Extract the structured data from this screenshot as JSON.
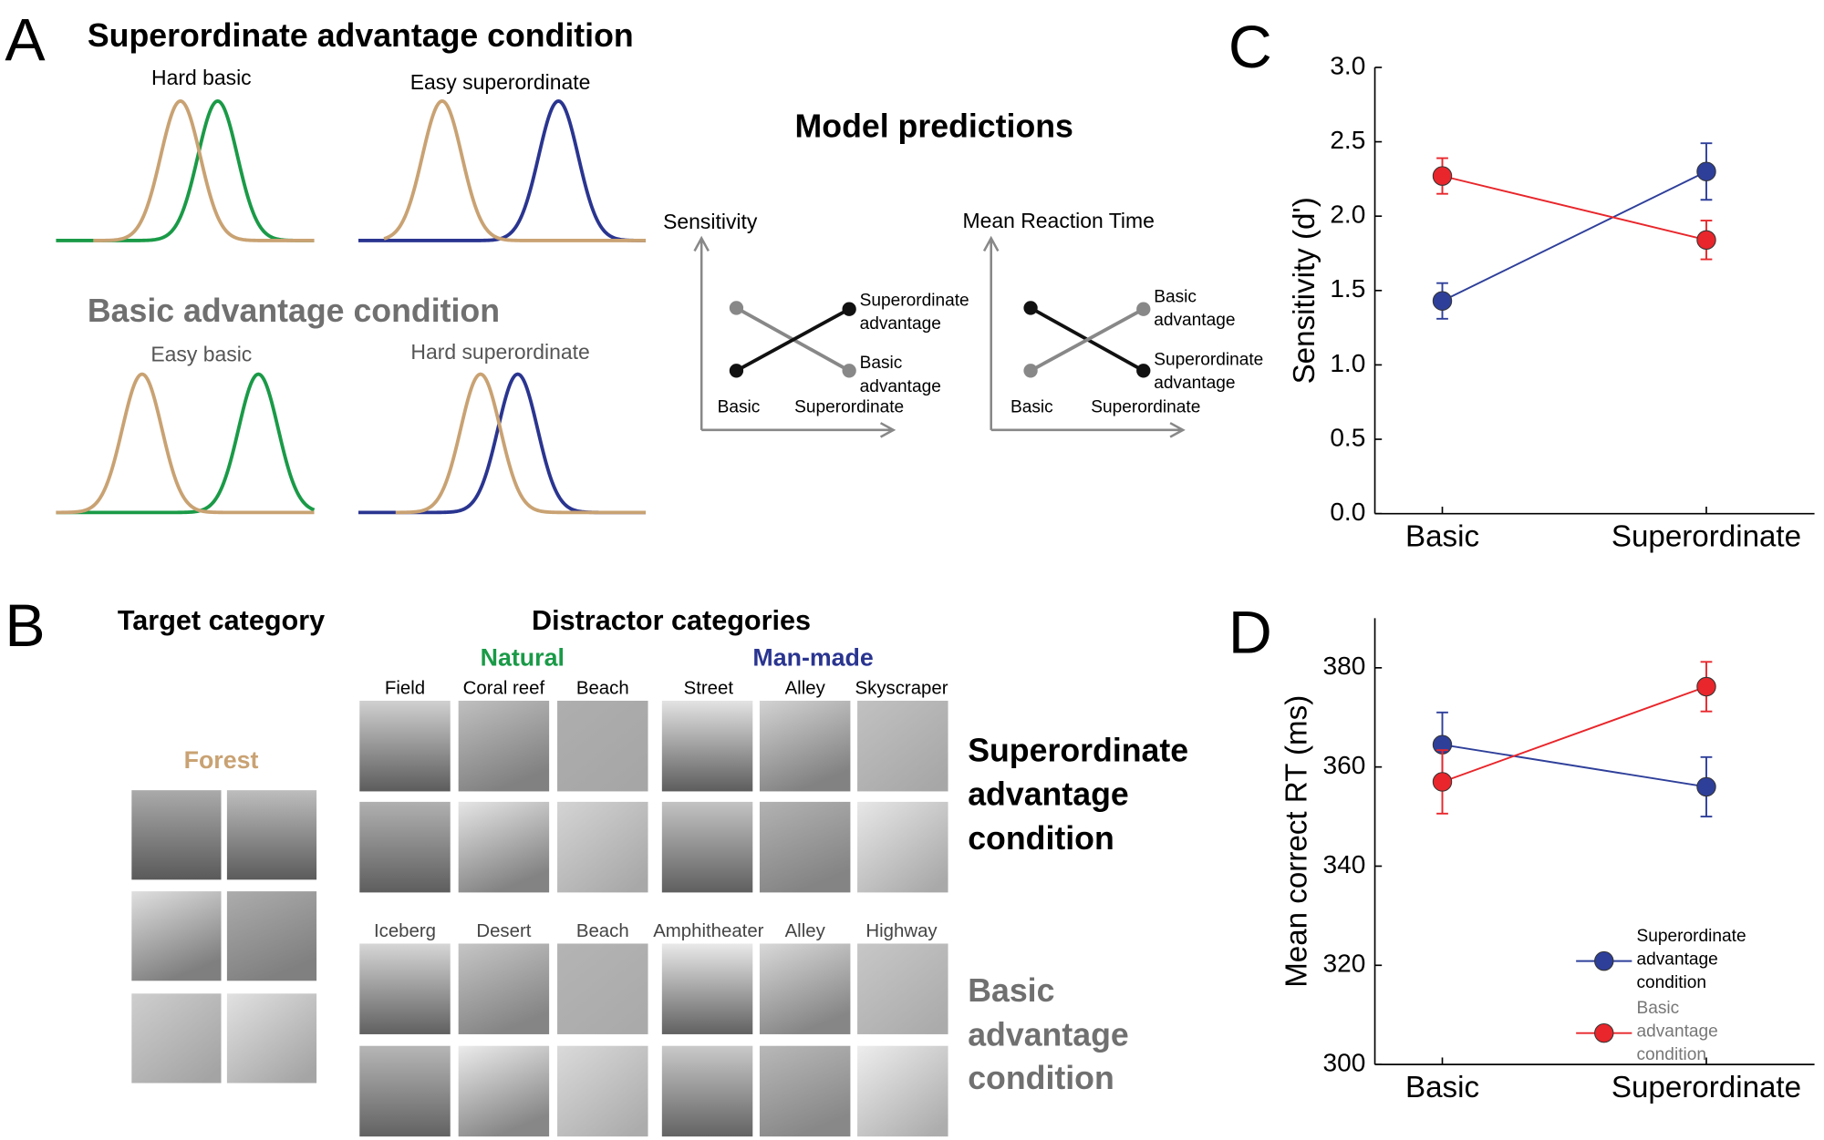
{
  "panel_labels": [
    "A",
    "B",
    "C",
    "D"
  ],
  "panel_a": {
    "title_top": "Superordinate advantage condition",
    "title_bottom": "Basic advantage condition",
    "plot_labels": [
      "Hard basic",
      "Easy superordinate",
      "Easy basic",
      "Hard superordinate"
    ],
    "model": {
      "title": "Model predictions",
      "sensitivity": {
        "axis_label": "Sensitivity",
        "x_labels": [
          "Basic",
          "Superordinate"
        ],
        "upper_label": [
          "Superordinate",
          "advantage"
        ],
        "lower_label": [
          "Basic",
          "advantage"
        ]
      },
      "reaction_time": {
        "axis_label": "Mean Reaction Time",
        "x_labels": [
          "Basic",
          "Superordinate"
        ],
        "upper_label": [
          "Basic",
          "advantage"
        ],
        "lower_label": [
          "Superordinate",
          "advantage"
        ]
      }
    }
  },
  "panel_b": {
    "target_title": "Target category",
    "distractor_title": "Distractor categories",
    "natural": "Natural",
    "man_made": "Man-made",
    "target_name": "Forest",
    "top_row_labels": [
      "Field",
      "Coral reef",
      "Beach",
      "Street",
      "Alley",
      "Skyscraper"
    ],
    "bottom_row_labels": [
      "Iceberg",
      "Desert",
      "Beach",
      "Amphitheater",
      "Alley",
      "Highway"
    ],
    "top_condition": [
      "Superordinate",
      "advantage",
      "condition"
    ],
    "bottom_condition": [
      "Basic",
      "advantage",
      "condition"
    ]
  },
  "chart_data": [
    {
      "type": "line",
      "ylabel": "Sensitivity (d')",
      "categories": [
        "Basic",
        "Superordinate"
      ],
      "ylim": [
        0,
        3
      ],
      "yticks": [
        {
          "value": 0,
          "label": "0.0"
        },
        {
          "value": 0.5,
          "label": "0.5"
        },
        {
          "value": 1,
          "label": "1.0"
        },
        {
          "value": 1.5,
          "label": "1.5"
        },
        {
          "value": 2,
          "label": "2.0"
        },
        {
          "value": 2.5,
          "label": "2.5"
        },
        {
          "value": 3,
          "label": "3.0"
        }
      ],
      "series": [
        {
          "name": "Superordinate advantage condition",
          "color": "#2e3f9a",
          "values": [
            1.43,
            2.3
          ],
          "errors": [
            0.12,
            0.19
          ]
        },
        {
          "name": "Basic advantage condition",
          "color": "#e8262b",
          "values": [
            2.27,
            1.84
          ],
          "errors": [
            0.12,
            0.13
          ]
        }
      ]
    },
    {
      "type": "line",
      "ylabel": "Mean correct RT (ms)",
      "categories": [
        "Basic",
        "Superordinate"
      ],
      "ylim": [
        300,
        390
      ],
      "yticks": [
        300,
        320,
        340,
        360,
        380
      ],
      "legend": "lower right",
      "series": [
        {
          "name": "Superordinate advantage condition",
          "color": "#2e3f9a",
          "values": [
            364.5,
            356
          ],
          "errors": [
            6.5,
            6
          ]
        },
        {
          "name": "Basic advantage condition",
          "color": "#e8262b",
          "values": [
            357,
            376.2
          ],
          "errors": [
            6.4,
            5
          ]
        }
      ]
    }
  ]
}
